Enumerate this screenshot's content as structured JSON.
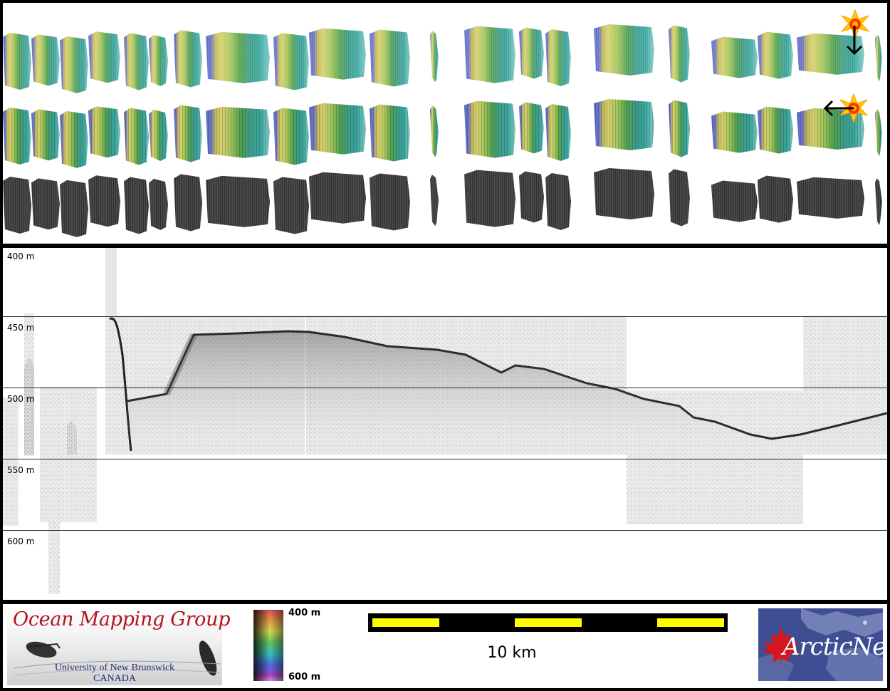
{
  "depth_axis": {
    "labels": [
      "400 m",
      "450 m",
      "500 m",
      "550 m",
      "600 m"
    ]
  },
  "footer": {
    "logo_left": {
      "title": "Ocean Mapping Group",
      "line1": "University of New Brunswick",
      "line2": "CANADA"
    },
    "colorbar": {
      "top_label": "400 m",
      "bottom_label": "600 m"
    },
    "scalebar": {
      "label": "10 km"
    },
    "logo_right": {
      "text": "ArcticNet"
    }
  },
  "top_panel": {
    "strip_colors": [
      "#5c73c2",
      "#e3cf6b",
      "#9cc158",
      "#4a9e4f",
      "#3da39a",
      "#7cd1c9"
    ]
  }
}
